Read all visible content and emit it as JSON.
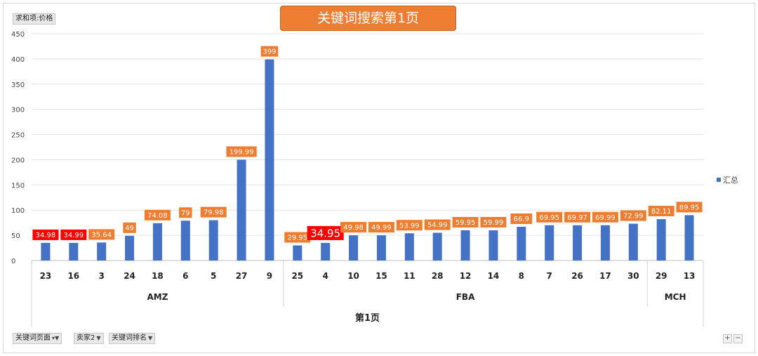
{
  "field_button": "求和项:价格",
  "title": "关键词搜索第1页",
  "legend": {
    "label": "汇总",
    "color": "#4472c4"
  },
  "filters": [
    {
      "label": "关键词页面",
      "icon": "filter-icon"
    },
    {
      "label": "卖家2",
      "icon": "chevron-down-icon"
    },
    {
      "label": "关键词排名",
      "icon": "chevron-down-icon"
    }
  ],
  "zoom": {
    "plus": "+",
    "minus": "−"
  },
  "chart_data": {
    "type": "bar",
    "ylim": [
      0,
      450
    ],
    "yticks": [
      0,
      50,
      100,
      150,
      200,
      250,
      300,
      350,
      400,
      450
    ],
    "grid": true,
    "legend_position": "right",
    "bar_color": "#4472c4",
    "categories": [
      "23",
      "16",
      "3",
      "24",
      "18",
      "6",
      "5",
      "27",
      "9",
      "25",
      "4",
      "10",
      "15",
      "11",
      "28",
      "12",
      "14",
      "8",
      "7",
      "26",
      "17",
      "30",
      "29",
      "13"
    ],
    "values": [
      34.98,
      34.99,
      35.64,
      49,
      74.08,
      79,
      79.98,
      199.99,
      399,
      29.95,
      34.95,
      49.98,
      49.99,
      53.99,
      54.99,
      59.95,
      59.99,
      66.9,
      69.95,
      69.97,
      69.99,
      72.99,
      82.11,
      89.95
    ],
    "labels": [
      "34.98",
      "34.99",
      "35.64",
      "49",
      "74.08",
      "79",
      "79.98",
      "199.99",
      "399",
      "29.95",
      "34.95",
      "49.98",
      "49.99",
      "53.99",
      "54.99",
      "59.95",
      "59.99",
      "66.9",
      "69.95",
      "69.97",
      "69.99",
      "72.99",
      "82.11",
      "89.95"
    ],
    "label_colors": [
      "#ff0000",
      "#ff0000",
      "#ed7d31",
      "#ed7d31",
      "#ed7d31",
      "#ed7d31",
      "#ed7d31",
      "#ed7d31",
      "#ed7d31",
      "#ed7d31",
      "#ff0000",
      "#ed7d31",
      "#ed7d31",
      "#ed7d31",
      "#ed7d31",
      "#ed7d31",
      "#ed7d31",
      "#ed7d31",
      "#ed7d31",
      "#ed7d31",
      "#ed7d31",
      "#ed7d31",
      "#ed7d31",
      "#ed7d31"
    ],
    "series": [
      {
        "name": "汇总",
        "values": [
          34.98,
          34.99,
          35.64,
          49,
          74.08,
          79,
          79.98,
          199.99,
          399,
          29.95,
          34.95,
          49.98,
          49.99,
          53.99,
          54.99,
          59.95,
          59.99,
          66.9,
          69.95,
          69.97,
          69.99,
          72.99,
          82.11,
          89.95
        ]
      }
    ],
    "groups": [
      {
        "name": "AMZ",
        "count": 9
      },
      {
        "name": "FBA",
        "count": 13
      },
      {
        "name": "MCH",
        "count": 2
      }
    ],
    "outer_group": "第1页"
  }
}
